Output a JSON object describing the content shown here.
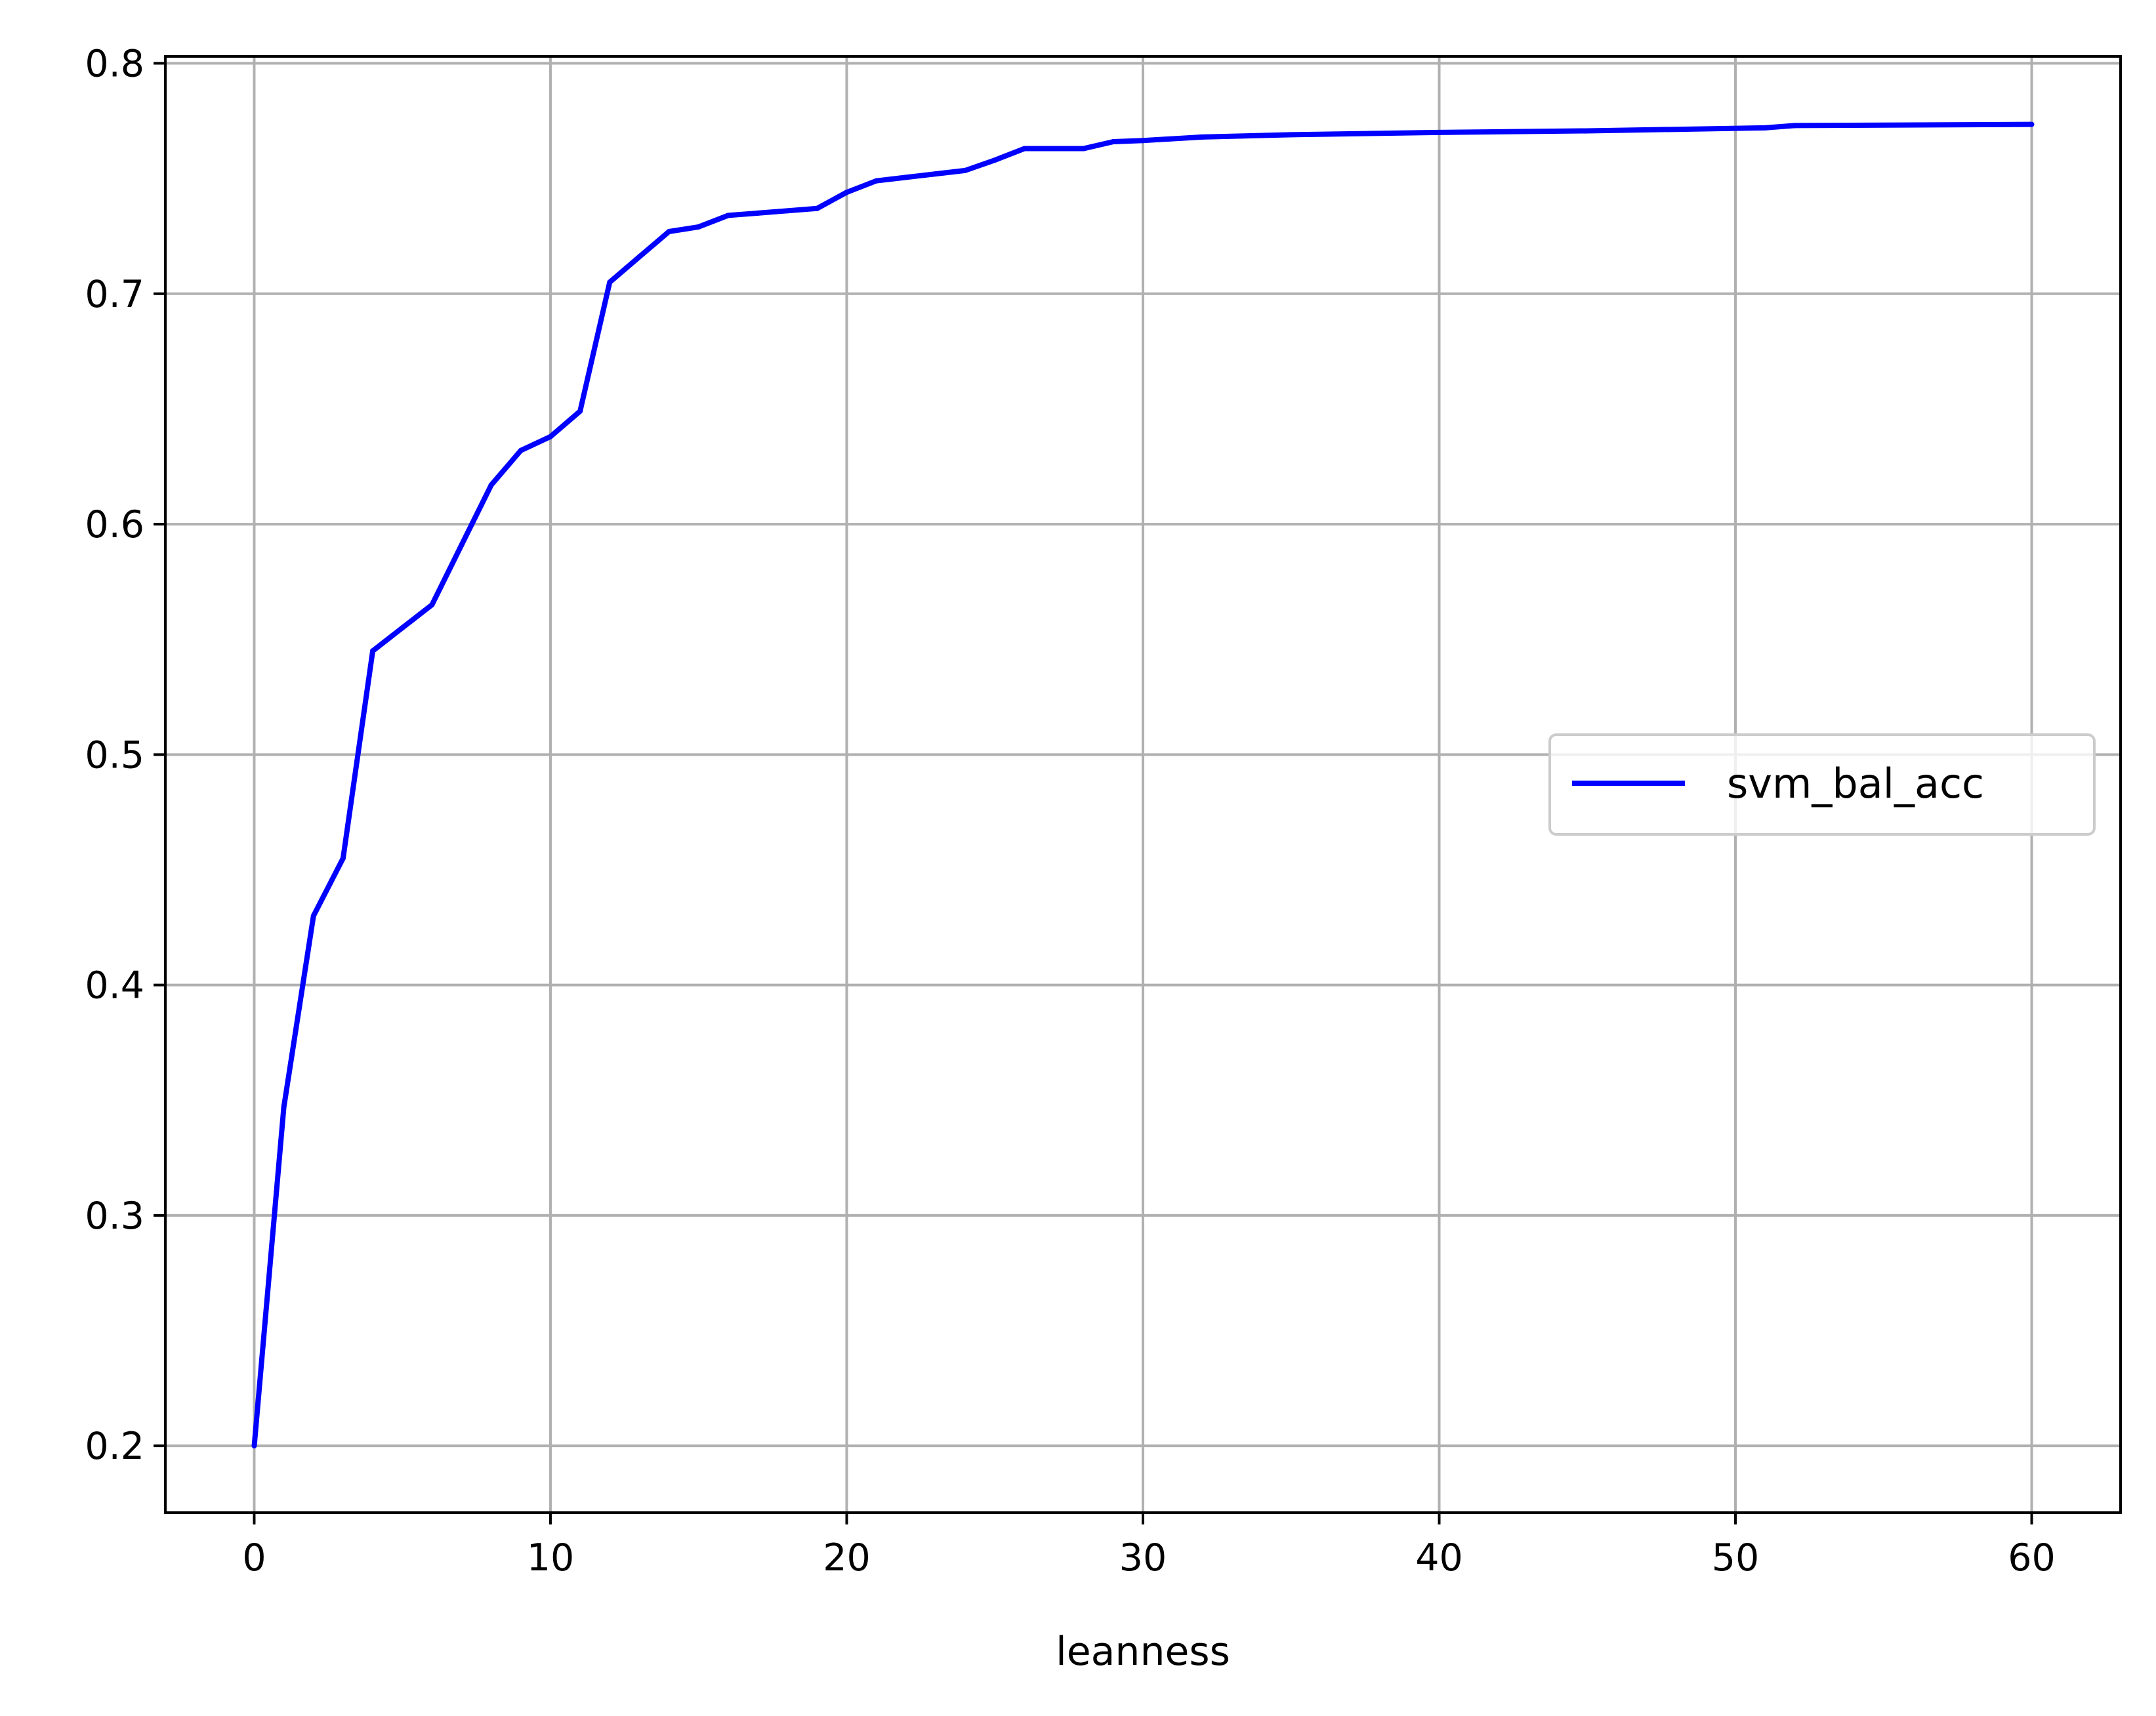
{
  "chart_data": {
    "type": "line",
    "xlabel": "leanness",
    "ylabel": "",
    "title": "",
    "xlim": [
      -3,
      63
    ],
    "ylim": [
      0.171,
      0.803
    ],
    "xticks": [
      0,
      10,
      20,
      30,
      40,
      50,
      60
    ],
    "yticks": [
      0.2,
      0.3,
      0.4,
      0.5,
      0.6,
      0.7,
      0.8
    ],
    "xtick_labels": [
      "0",
      "10",
      "20",
      "30",
      "40",
      "50",
      "60"
    ],
    "ytick_labels": [
      "0.2",
      "0.3",
      "0.4",
      "0.5",
      "0.6",
      "0.7",
      "0.8"
    ],
    "grid": true,
    "legend_position": "center-right",
    "series": [
      {
        "name": "svm_bal_acc",
        "color": "#0000ff",
        "x": [
          0,
          1,
          2,
          3,
          4,
          5,
          6,
          7,
          8,
          9,
          10,
          11,
          12,
          13,
          14,
          15,
          16,
          17,
          18,
          19,
          20,
          21,
          22,
          23,
          24,
          25,
          26,
          27,
          28,
          29,
          30,
          32,
          35,
          40,
          45,
          51,
          52,
          60
        ],
        "y": [
          0.2,
          0.347,
          0.43,
          0.455,
          0.545,
          0.555,
          0.565,
          0.591,
          0.617,
          0.632,
          0.638,
          0.649,
          0.705,
          0.716,
          0.727,
          0.729,
          0.734,
          0.735,
          0.736,
          0.737,
          0.744,
          0.749,
          0.7505,
          0.752,
          0.7535,
          0.758,
          0.763,
          0.763,
          0.763,
          0.766,
          0.7665,
          0.768,
          0.769,
          0.77,
          0.7707,
          0.772,
          0.773,
          0.7735
        ]
      }
    ]
  }
}
